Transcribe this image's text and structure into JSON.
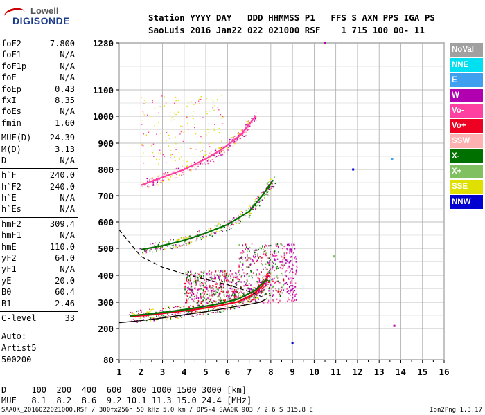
{
  "logo": {
    "line1": "Lowell",
    "line2": "DIGISONDE"
  },
  "header": {
    "line1": "Station YYYY DAY   DDD HHMMSS P1   FFS S AXN PPS IGA PS",
    "line2": "SaoLuis 2016 Jan22 022 021000 RSF    1 715 100 00- 11"
  },
  "params": {
    "group1": [
      {
        "k": "foF2",
        "v": "7.800"
      },
      {
        "k": "foF1",
        "v": "N/A"
      },
      {
        "k": "foF1p",
        "v": "N/A"
      },
      {
        "k": "foE",
        "v": "N/A"
      },
      {
        "k": "foEp",
        "v": "0.43"
      },
      {
        "k": "fxI",
        "v": "8.35"
      },
      {
        "k": "foEs",
        "v": "N/A"
      },
      {
        "k": "fmin",
        "v": "1.60"
      }
    ],
    "group2": [
      {
        "k": "MUF(D)",
        "v": "24.39"
      },
      {
        "k": "M(D)",
        "v": "3.13"
      },
      {
        "k": "D",
        "v": "N/A"
      }
    ],
    "group3": [
      {
        "k": "h`F",
        "v": "240.0"
      },
      {
        "k": "h`F2",
        "v": "240.0"
      },
      {
        "k": "h`E",
        "v": "N/A"
      },
      {
        "k": "h`Es",
        "v": "N/A"
      }
    ],
    "group4": [
      {
        "k": "hmF2",
        "v": "309.4"
      },
      {
        "k": "hmF1",
        "v": "N/A"
      },
      {
        "k": "hmE",
        "v": "110.0"
      },
      {
        "k": "yF2",
        "v": "64.0"
      },
      {
        "k": "yF1",
        "v": "N/A"
      },
      {
        "k": "yE",
        "v": "20.0"
      },
      {
        "k": "B0",
        "v": "60.4"
      },
      {
        "k": "B1",
        "v": "2.46"
      }
    ],
    "group5": [
      {
        "k": "C-level",
        "v": "33"
      }
    ]
  },
  "auto": {
    "line1": "Auto:",
    "line2": "Artist5",
    "line3": "500200"
  },
  "legend": [
    {
      "label": "NoVal",
      "color": "#a0a0a0"
    },
    {
      "label": "NNE",
      "color": "#00e0f0"
    },
    {
      "label": "E",
      "color": "#40a0f0"
    },
    {
      "label": "W",
      "color": "#b000b0"
    },
    {
      "label": "Vo-",
      "color": "#ff40a0"
    },
    {
      "label": "Vo+",
      "color": "#ee0022"
    },
    {
      "label": "SSW",
      "color": "#ffb0b0"
    },
    {
      "label": "X-",
      "color": "#007000"
    },
    {
      "label": "X+",
      "color": "#80c060"
    },
    {
      "label": "SSE",
      "color": "#e0e000"
    },
    {
      "label": "NNW",
      "color": "#0000d0"
    }
  ],
  "bottom": {
    "dline": "D     100  200  400  600  800 1000 1500 3000 [km]",
    "mufline": "MUF   8.1  8.2  8.6  9.2 10.1 11.3 15.0 24.4 [MHz]",
    "footer": "SAA0K_2016022021000.RSF / 300fx256h 50 kHz 5.0 km / DPS-4 SAA0K 903 / 2.6 S 315.8 E",
    "version": "Ion2Png 1.3.17"
  },
  "chart_data": {
    "type": "scatter",
    "x_ticks": [
      1,
      2,
      3,
      4,
      5,
      6,
      7,
      8,
      9,
      10,
      11,
      12,
      13,
      14,
      15,
      16
    ],
    "y_ticks": [
      80,
      200,
      300,
      400,
      500,
      600,
      700,
      800,
      900,
      1000,
      1100,
      1280
    ],
    "xlim": [
      1,
      16
    ],
    "ylim": [
      80,
      1280
    ],
    "y_scale": "reciprocal-like (virtual height, compressed at top)",
    "grid": true,
    "traces": [
      {
        "name": "O-trace 1st hop",
        "color": "#ee0022",
        "x": [
          1.5,
          2.5,
          3.5,
          4.5,
          5.5,
          6.5,
          7.2,
          7.6,
          7.9
        ],
        "y": [
          245,
          252,
          262,
          272,
          285,
          302,
          330,
          360,
          400
        ]
      },
      {
        "name": "X-trace 1st hop",
        "color": "#007000",
        "x": [
          1.5,
          2.5,
          3.5,
          4.5,
          5.5,
          6.5,
          7.3,
          7.8
        ],
        "y": [
          248,
          256,
          266,
          278,
          292,
          312,
          345,
          385
        ]
      },
      {
        "name": "2nd hop",
        "color": "#007000",
        "x": [
          2.0,
          3.0,
          4.0,
          5.0,
          6.0,
          7.0,
          7.6,
          8.1
        ],
        "y": [
          495,
          510,
          530,
          558,
          590,
          640,
          700,
          760
        ]
      },
      {
        "name": "3rd hop",
        "color": "#ff40a0",
        "x": [
          2.0,
          3.0,
          4.0,
          5.0,
          5.8,
          6.6,
          7.3
        ],
        "y": [
          740,
          770,
          800,
          840,
          880,
          930,
          1000
        ]
      },
      {
        "name": "profile curve",
        "color": "#000000",
        "x": [
          1.0,
          2.0,
          3.0,
          4.0,
          5.0,
          6.0,
          7.0,
          7.5,
          7.8
        ],
        "y": [
          222,
          230,
          240,
          252,
          264,
          278,
          292,
          300,
          312
        ]
      },
      {
        "name": "dashed model",
        "color": "#000000",
        "x": [
          1.0,
          2.0,
          3.0,
          4.0,
          5.0,
          6.0,
          7.0,
          7.6
        ],
        "y": [
          570,
          470,
          430,
          405,
          385,
          365,
          340,
          320
        ]
      }
    ],
    "isolated_points": [
      {
        "x": 10.5,
        "y": 1280,
        "color": "#b000b0"
      },
      {
        "x": 9.0,
        "y": 145,
        "color": "#0000d0"
      },
      {
        "x": 11.8,
        "y": 800,
        "color": "#0000d0"
      },
      {
        "x": 13.6,
        "y": 840,
        "color": "#40a0f0"
      },
      {
        "x": 13.7,
        "y": 210,
        "color": "#b000b0"
      },
      {
        "x": 10.9,
        "y": 470,
        "color": "#80c060"
      }
    ]
  }
}
